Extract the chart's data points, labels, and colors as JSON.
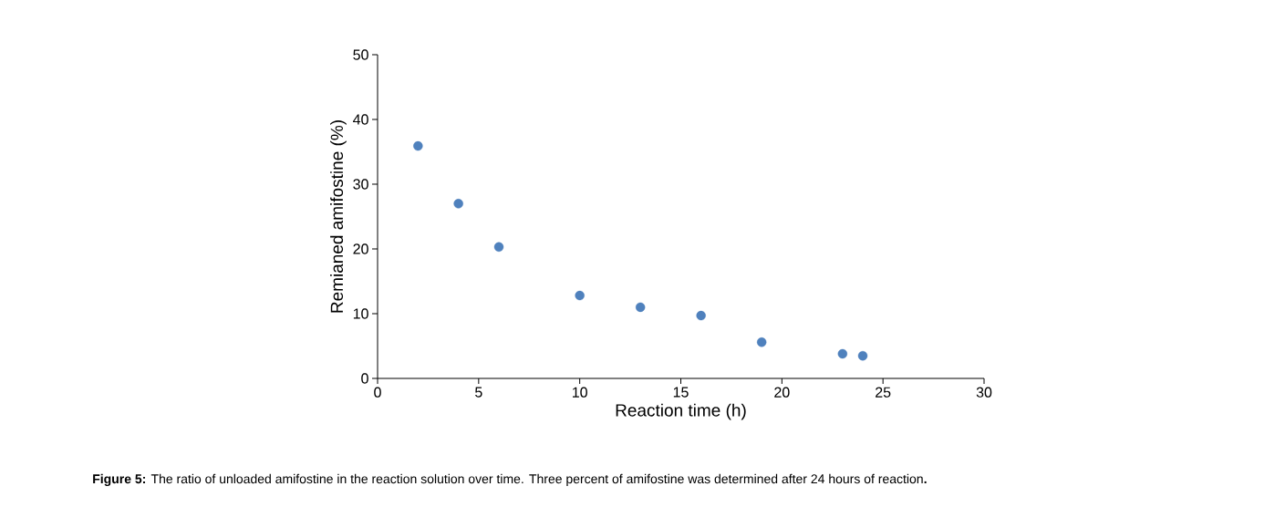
{
  "chart_data": {
    "type": "scatter",
    "xlabel": "Reaction time (h)",
    "ylabel": "Remianed amifostine (%)",
    "x": [
      2,
      4,
      6,
      10,
      13,
      16,
      19,
      23,
      24
    ],
    "series": [
      {
        "color": "#4f81bd",
        "values": [
          35.9,
          27.0,
          20.3,
          12.8,
          11.0,
          9.7,
          5.6,
          3.8,
          3.5
        ]
      }
    ],
    "xlim": [
      0,
      30
    ],
    "xticks": [
      0,
      5,
      10,
      15,
      20,
      25,
      30
    ],
    "ylim": [
      0,
      50
    ],
    "yticks": [
      0,
      10,
      20,
      30,
      40,
      50
    ],
    "marker": "circle",
    "annotations": [
      "**Figure 5:** The ratio of unloaded amifostine in the reaction solution over time. Three percent of amifostine was determined after 24 hours of reaction**.**"
    ]
  }
}
